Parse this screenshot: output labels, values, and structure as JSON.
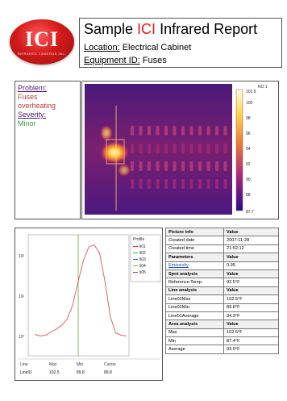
{
  "logo": {
    "text": "ICI",
    "tagline": "INFRARED CAMERAS INC."
  },
  "header": {
    "title_prefix": "Sample ",
    "title_accent": "ICI",
    "title_suffix": " Infrared Report",
    "location_label": "Location:",
    "location_value": " Electrical Cabinet",
    "equipment_label": "Equipment ID:",
    "equipment_value": " Fuses"
  },
  "problem": {
    "problem_label": "Problem:",
    "problem_line1": "Fuses",
    "problem_line2": "overheating",
    "severity_label": "Severity:",
    "severity_value": "Minor"
  },
  "thermal": {
    "scale_top": "101.9",
    "scale_ticks": [
      "100",
      "98",
      "96",
      "94",
      "92",
      "90",
      "88"
    ],
    "scale_bottom": "87.7",
    "corner_label": "NO 1",
    "colors": {
      "cold": "#2a0a8a",
      "mid": "#b0287a",
      "warm": "#f07830",
      "hot": "#fff6b0"
    }
  },
  "profile": {
    "legend_title": "Profile",
    "legend_items": [
      "li01",
      "li02",
      "li03",
      "li04",
      "li05"
    ],
    "legend_colors": [
      "#d94040",
      "#4a9a3a",
      "#3c5fbf",
      "#c0a030",
      "#7a4ab0"
    ],
    "y_ticks": [
      "10²",
      "10¹",
      "10°"
    ],
    "footer_headers": [
      "Line",
      "Max",
      "Min",
      "Cursor"
    ],
    "footer_values": [
      "Line01",
      "102.5",
      "89.8",
      "89.8"
    ]
  },
  "chart_data": {
    "type": "line",
    "title": "",
    "xlabel": "",
    "ylabel": "",
    "series": [
      {
        "values": [
          90.6,
          90.4,
          90.5,
          90.9,
          91.3,
          91.8,
          92.6,
          94.4,
          97.4,
          100.3,
          102.1,
          102.4,
          101.3,
          97.6,
          92.9,
          90.8,
          90.5,
          90.4
        ]
      }
    ],
    "ylim": [
      88,
      103.5
    ],
    "grid": false,
    "legend": "right"
  },
  "table": [
    {
      "label": "Picture info",
      "value": "Value",
      "header": true
    },
    {
      "label": "Created date",
      "value": "2007-11-28",
      "header": false
    },
    {
      "label": "Created time",
      "value": "21:52:12",
      "header": false
    },
    {
      "label": "Parameters",
      "value": "Value",
      "header": true
    },
    {
      "label": "Emissivity",
      "value": "0.95",
      "header": false
    },
    {
      "label": "Spot analysis",
      "value": "Value",
      "header": true
    },
    {
      "label": "Reference Temp.",
      "value": "92.5°F",
      "header": false
    },
    {
      "label": "Line analysis",
      "value": "Value",
      "header": true
    },
    {
      "label": "Line01Max",
      "value": "102.5°F",
      "header": false
    },
    {
      "label": "Line01Min",
      "value": "89.8°F",
      "header": false
    },
    {
      "label": "Line01Average",
      "value": "94.3°F",
      "header": false
    },
    {
      "label": "Area analysis",
      "value": "Value",
      "header": true
    },
    {
      "label": "Max",
      "value": "102.5°F",
      "header": false
    },
    {
      "label": "Min",
      "value": "87.4°F",
      "header": false
    },
    {
      "label": "Average",
      "value": "93.9°F",
      "header": false
    }
  ]
}
